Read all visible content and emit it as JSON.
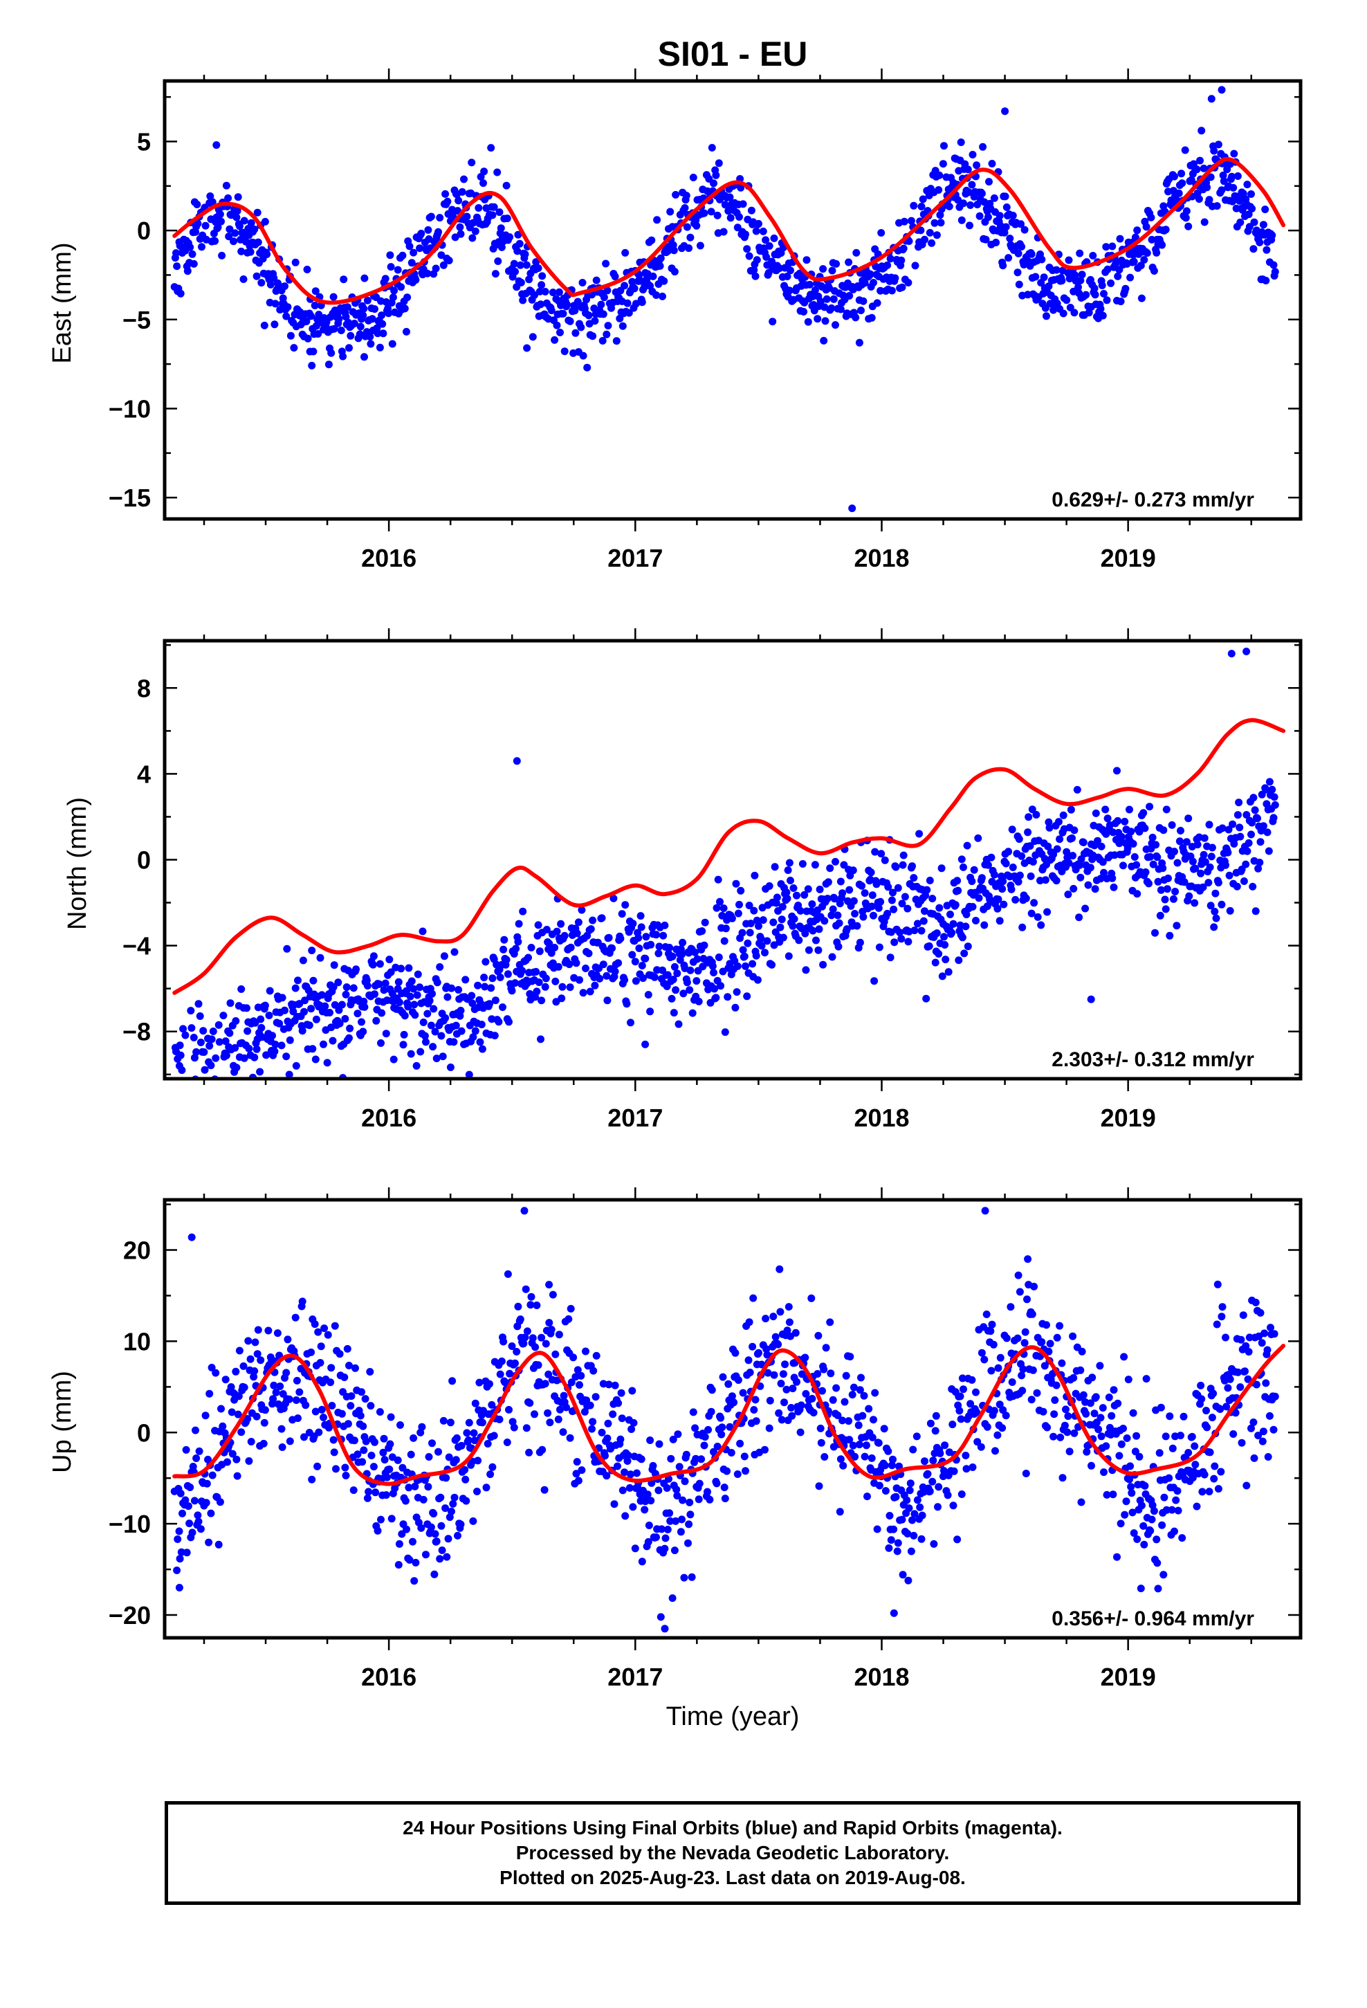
{
  "title": "SI01 - EU",
  "footer": {
    "line1": "24 Hour Positions Using Final Orbits (blue) and Rapid Orbits (magenta).",
    "line2": "Processed by the Nevada Geodetic Laboratory.",
    "line3": "Plotted on 2025-Aug-23. Last data on 2019-Aug-08."
  },
  "colors": {
    "data": "#0000ff",
    "model": "#ff0000"
  },
  "chart_data": [
    {
      "type": "scatter",
      "ylabel": "East (mm)",
      "rate": "0.629+/- 0.273 mm/yr",
      "xlim": [
        2015.09,
        2019.7
      ],
      "ylim": [
        -16.2,
        8.4
      ],
      "yticks": [
        -15,
        -10,
        -5,
        0,
        5
      ],
      "xticks": [
        2016,
        2017,
        2018,
        2019
      ],
      "grid": false,
      "series": [
        {
          "role": "data-points",
          "trend": 0.629,
          "offset": -1.6,
          "annual": [
            -1.1,
            2.9
          ],
          "semiannual": [
            -0.3,
            -0.5
          ],
          "noise": 1.1,
          "seed": 11,
          "outliers": [
            [
              2015.68,
              -6.8
            ],
            [
              2015.9,
              -7.1
            ],
            [
              2017.88,
              -15.6
            ],
            [
              2016.56,
              -6.6
            ],
            [
              2017.91,
              -6.3
            ],
            [
              2015.3,
              4.8
            ],
            [
              2018.5,
              6.7
            ],
            [
              2019.38,
              7.9
            ]
          ]
        },
        {
          "role": "fit-curve",
          "points": [
            [
              2015.13,
              -0.3
            ],
            [
              2015.22,
              0.7
            ],
            [
              2015.33,
              1.5
            ],
            [
              2015.45,
              0.8
            ],
            [
              2015.58,
              -2.2
            ],
            [
              2015.73,
              -4.0
            ],
            [
              2015.95,
              -3.4
            ],
            [
              2016.15,
              -1.6
            ],
            [
              2016.33,
              1.5
            ],
            [
              2016.45,
              1.9
            ],
            [
              2016.58,
              -1.0
            ],
            [
              2016.72,
              -3.3
            ],
            [
              2016.78,
              -3.5
            ],
            [
              2017.0,
              -2.3
            ],
            [
              2017.25,
              1.2
            ],
            [
              2017.42,
              2.7
            ],
            [
              2017.55,
              0.7
            ],
            [
              2017.68,
              -2.2
            ],
            [
              2017.78,
              -2.7
            ],
            [
              2018.0,
              -1.5
            ],
            [
              2018.25,
              1.6
            ],
            [
              2018.4,
              3.4
            ],
            [
              2018.52,
              2.3
            ],
            [
              2018.68,
              -1.0
            ],
            [
              2018.78,
              -2.1
            ],
            [
              2019.0,
              -1.0
            ],
            [
              2019.2,
              1.4
            ],
            [
              2019.35,
              3.6
            ],
            [
              2019.43,
              3.9
            ],
            [
              2019.55,
              2.2
            ],
            [
              2019.63,
              0.3
            ]
          ]
        }
      ]
    },
    {
      "type": "scatter",
      "ylabel": "North (mm)",
      "rate": "2.303+/- 0.312 mm/yr",
      "xlim": [
        2015.09,
        2019.7
      ],
      "ylim": [
        -10.2,
        10.2
      ],
      "yticks": [
        -8,
        -4,
        0,
        4,
        8
      ],
      "xticks": [
        2016,
        2017,
        2018,
        2019
      ],
      "grid": false,
      "series": [
        {
          "role": "data-points",
          "trend": 2.303,
          "offset": -3.8,
          "annual": [
            0.2,
            -0.8
          ],
          "semiannual": [
            0.2,
            0.2
          ],
          "noise": 1.25,
          "seed": 23,
          "outliers": [
            [
              2015.16,
              -9.8
            ],
            [
              2015.15,
              -9.6
            ],
            [
              2016.02,
              -9.3
            ],
            [
              2017.04,
              -8.6
            ],
            [
              2018.85,
              -6.5
            ],
            [
              2016.52,
              4.6
            ],
            [
              2019.42,
              9.6
            ],
            [
              2019.48,
              9.7
            ]
          ]
        },
        {
          "role": "fit-curve",
          "points": [
            [
              2015.13,
              -6.2
            ],
            [
              2015.25,
              -5.3
            ],
            [
              2015.38,
              -3.6
            ],
            [
              2015.52,
              -2.7
            ],
            [
              2015.65,
              -3.5
            ],
            [
              2015.78,
              -4.3
            ],
            [
              2015.92,
              -4.0
            ],
            [
              2016.05,
              -3.5
            ],
            [
              2016.2,
              -3.8
            ],
            [
              2016.3,
              -3.5
            ],
            [
              2016.42,
              -1.5
            ],
            [
              2016.52,
              -0.4
            ],
            [
              2016.6,
              -0.8
            ],
            [
              2016.75,
              -2.1
            ],
            [
              2016.88,
              -1.7
            ],
            [
              2017.0,
              -1.2
            ],
            [
              2017.12,
              -1.6
            ],
            [
              2017.25,
              -0.9
            ],
            [
              2017.38,
              1.3
            ],
            [
              2017.5,
              1.8
            ],
            [
              2017.62,
              1.0
            ],
            [
              2017.75,
              0.3
            ],
            [
              2017.88,
              0.8
            ],
            [
              2018.0,
              1.0
            ],
            [
              2018.15,
              0.7
            ],
            [
              2018.28,
              2.4
            ],
            [
              2018.38,
              3.8
            ],
            [
              2018.5,
              4.2
            ],
            [
              2018.62,
              3.3
            ],
            [
              2018.75,
              2.6
            ],
            [
              2018.88,
              2.9
            ],
            [
              2019.0,
              3.3
            ],
            [
              2019.15,
              3.0
            ],
            [
              2019.28,
              4.0
            ],
            [
              2019.4,
              5.8
            ],
            [
              2019.5,
              6.5
            ],
            [
              2019.63,
              6.0
            ]
          ]
        }
      ]
    },
    {
      "type": "scatter",
      "ylabel": "Up (mm)",
      "xlabel": "Time (year)",
      "rate": "0.356+/- 0.964 mm/yr",
      "xlim": [
        2015.09,
        2019.7
      ],
      "ylim": [
        -22.5,
        25.5
      ],
      "yticks": [
        -20,
        -10,
        0,
        10,
        20
      ],
      "xticks": [
        2016,
        2017,
        2018,
        2019
      ],
      "grid": false,
      "series": [
        {
          "role": "data-points",
          "trend": 0.356,
          "offset": 0.2,
          "annual": [
            -5.6,
            -4.5
          ],
          "semiannual": [
            0.5,
            -1.0
          ],
          "noise": 4.2,
          "seed": 37,
          "outliers": [
            [
              2015.15,
              -17.0
            ],
            [
              2015.2,
              21.4
            ],
            [
              2016.55,
              24.3
            ],
            [
              2017.12,
              -21.5
            ],
            [
              2018.42,
              24.3
            ],
            [
              2018.05,
              -19.8
            ],
            [
              2016.65,
              16.2
            ]
          ]
        },
        {
          "role": "fit-curve",
          "points": [
            [
              2015.13,
              -4.8
            ],
            [
              2015.25,
              -4.2
            ],
            [
              2015.38,
              0.5
            ],
            [
              2015.52,
              6.8
            ],
            [
              2015.62,
              8.3
            ],
            [
              2015.72,
              4.5
            ],
            [
              2015.85,
              -3.5
            ],
            [
              2015.98,
              -5.6
            ],
            [
              2016.12,
              -4.8
            ],
            [
              2016.3,
              -3.5
            ],
            [
              2016.42,
              1.5
            ],
            [
              2016.52,
              6.5
            ],
            [
              2016.62,
              8.7
            ],
            [
              2016.72,
              5.0
            ],
            [
              2016.85,
              -2.5
            ],
            [
              2016.98,
              -5.2
            ],
            [
              2017.15,
              -4.5
            ],
            [
              2017.3,
              -3.4
            ],
            [
              2017.42,
              1.2
            ],
            [
              2017.52,
              6.8
            ],
            [
              2017.6,
              9.0
            ],
            [
              2017.7,
              6.5
            ],
            [
              2017.82,
              -0.8
            ],
            [
              2017.95,
              -4.8
            ],
            [
              2018.1,
              -4.0
            ],
            [
              2018.28,
              -3.0
            ],
            [
              2018.4,
              1.8
            ],
            [
              2018.52,
              7.5
            ],
            [
              2018.62,
              9.3
            ],
            [
              2018.72,
              6.2
            ],
            [
              2018.85,
              -1.0
            ],
            [
              2018.98,
              -4.3
            ],
            [
              2019.12,
              -4.0
            ],
            [
              2019.28,
              -2.5
            ],
            [
              2019.42,
              2.5
            ],
            [
              2019.55,
              7.2
            ],
            [
              2019.63,
              9.5
            ]
          ]
        }
      ]
    }
  ]
}
